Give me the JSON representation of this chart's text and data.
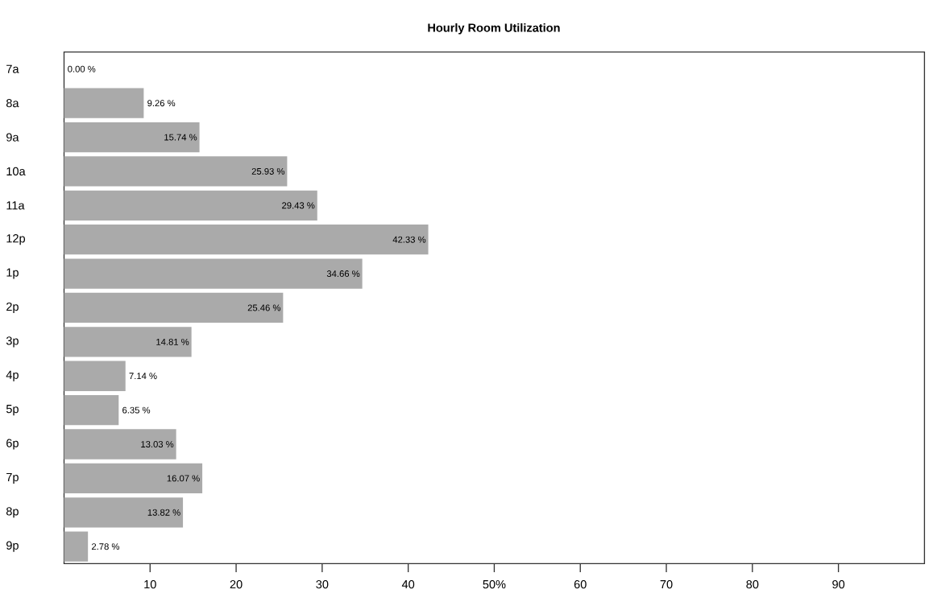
{
  "chart_data": {
    "type": "bar",
    "orientation": "horizontal",
    "title": "Hourly Room Utilization",
    "categories": [
      "7a",
      "8a",
      "9a",
      "10a",
      "11a",
      "12p",
      "1p",
      "2p",
      "3p",
      "4p",
      "5p",
      "6p",
      "7p",
      "8p",
      "9p"
    ],
    "values": [
      0.0,
      9.26,
      15.74,
      25.93,
      29.43,
      42.33,
      34.66,
      25.46,
      14.81,
      7.14,
      6.35,
      13.03,
      16.07,
      13.82,
      2.78
    ],
    "value_labels": [
      "0.00 %",
      "9.26 %",
      "15.74 %",
      "25.93 %",
      "29.43 %",
      "42.33 %",
      "34.66 %",
      "25.46 %",
      "14.81 %",
      "7.14 %",
      "6.35 %",
      "13.03 %",
      "16.07 %",
      "13.82 %",
      "2.78 %"
    ],
    "color": "#aaaaaa",
    "xlim": [
      0,
      100
    ],
    "xticks": [
      10,
      20,
      30,
      40,
      {
        "value": 50,
        "label": "50%"
      },
      60,
      70,
      80,
      90
    ]
  }
}
